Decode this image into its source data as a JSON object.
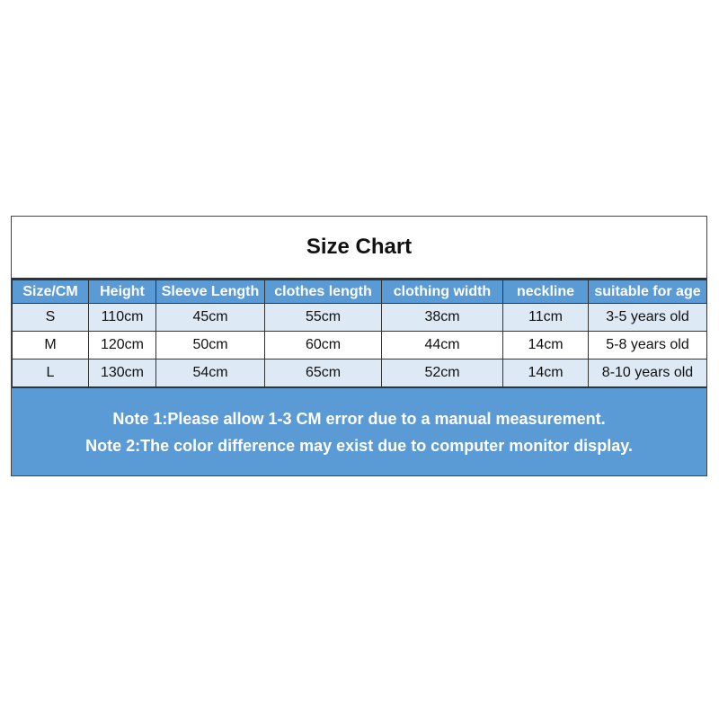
{
  "title": "Size Chart",
  "table": {
    "headers": [
      "Size/CM",
      "Height",
      "Sleeve Length",
      "clothes length",
      "clothing width",
      "neckline",
      "suitable for age"
    ],
    "rows": [
      [
        "S",
        "110cm",
        "45cm",
        "55cm",
        "38cm",
        "11cm",
        "3-5 years old"
      ],
      [
        "M",
        "120cm",
        "50cm",
        "60cm",
        "44cm",
        "14cm",
        "5-8 years old"
      ],
      [
        "L",
        "130cm",
        "54cm",
        "65cm",
        "52cm",
        "14cm",
        "8-10 years old"
      ]
    ]
  },
  "notes": [
    "Note 1:Please allow 1-3 CM error due to a manual measurement.",
    "Note 2:The color difference may exist due to computer monitor display."
  ],
  "colors": {
    "header_bg": "#5b9bd5",
    "row_alt_bg": "#dde9f5",
    "notes_bg": "#5b9bd5"
  }
}
